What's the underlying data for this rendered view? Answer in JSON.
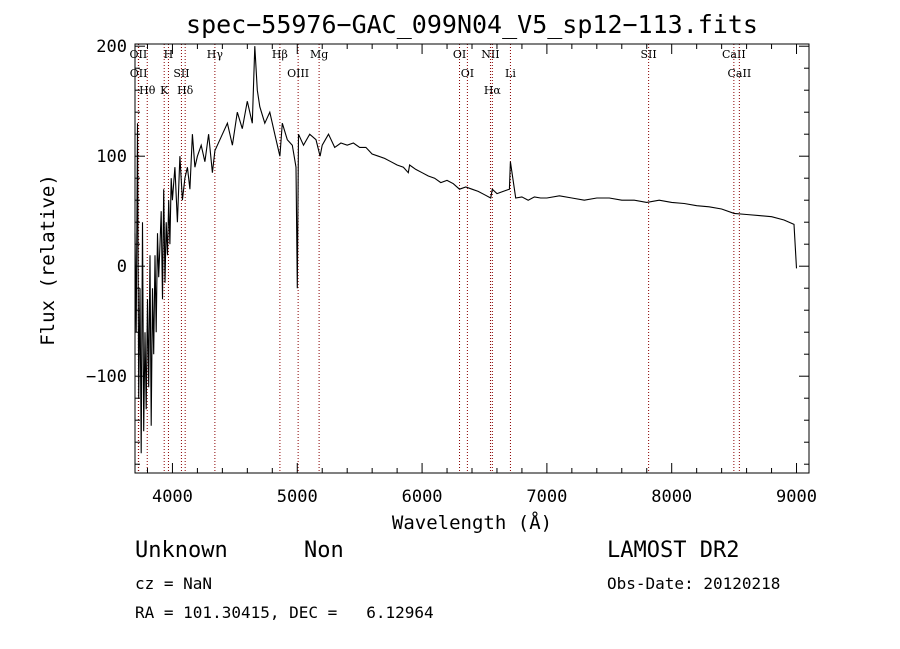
{
  "chart_data": {
    "type": "line",
    "title": "spec−55976−GAC_099N04_V5_sp12−113.fits",
    "xlabel": "Wavelength (Å)",
    "ylabel": "Flux (relative)",
    "xlim": [
      3700,
      9100
    ],
    "ylim": [
      -188,
      202
    ],
    "xticks": [
      4000,
      5000,
      6000,
      7000,
      8000,
      9000
    ],
    "yticks": [
      -100,
      0,
      100,
      200
    ],
    "yticklabels": [
      "−100",
      "0",
      "100",
      "200"
    ],
    "grid": false,
    "series": [
      {
        "x": [
          3700,
          3710,
          3720,
          3730,
          3740,
          3750,
          3760,
          3770,
          3780,
          3790,
          3800,
          3810,
          3820,
          3830,
          3840,
          3850,
          3860,
          3870,
          3880,
          3890,
          3900,
          3910,
          3920,
          3930,
          3940,
          3950,
          3960,
          3970,
          3980,
          3990,
          4000,
          4020,
          4040,
          4060,
          4080,
          4100,
          4120,
          4140,
          4160,
          4180,
          4200,
          4230,
          4260,
          4290,
          4320,
          4340,
          4360,
          4400,
          4440,
          4480,
          4520,
          4560,
          4600,
          4640,
          4660,
          4680,
          4700,
          4740,
          4780,
          4820,
          4861,
          4880,
          4920,
          4960,
          4990,
          5000,
          5010,
          5050,
          5100,
          5150,
          5183,
          5200,
          5250,
          5300,
          5350,
          5400,
          5450,
          5500,
          5550,
          5600,
          5650,
          5700,
          5750,
          5800,
          5850,
          5890,
          5900,
          5950,
          6000,
          6050,
          6100,
          6150,
          6200,
          6250,
          6300,
          6350,
          6400,
          6450,
          6500,
          6550,
          6563,
          6600,
          6650,
          6700,
          6708,
          6750,
          6800,
          6850,
          6900,
          6950,
          7000,
          7100,
          7200,
          7300,
          7400,
          7500,
          7600,
          7700,
          7800,
          7900,
          8000,
          8100,
          8200,
          8300,
          8400,
          8500,
          8600,
          8700,
          8800,
          8900,
          8980,
          9000
        ],
        "y": [
          30,
          -60,
          130,
          -120,
          -20,
          -170,
          40,
          -150,
          -60,
          -130,
          -30,
          -110,
          10,
          -145,
          -20,
          -80,
          10,
          -60,
          30,
          -10,
          20,
          50,
          -30,
          70,
          -15,
          40,
          10,
          60,
          20,
          80,
          60,
          90,
          40,
          100,
          60,
          80,
          90,
          70,
          120,
          90,
          100,
          110,
          95,
          120,
          85,
          105,
          110,
          120,
          130,
          110,
          140,
          125,
          150,
          130,
          200,
          160,
          145,
          130,
          140,
          120,
          100,
          130,
          115,
          110,
          90,
          -20,
          120,
          110,
          120,
          115,
          100,
          110,
          120,
          108,
          112,
          110,
          112,
          108,
          108,
          102,
          100,
          98,
          95,
          92,
          90,
          85,
          92,
          88,
          85,
          82,
          80,
          76,
          78,
          75,
          70,
          72,
          70,
          68,
          65,
          62,
          70,
          66,
          68,
          70,
          95,
          62,
          63,
          60,
          63,
          62,
          62,
          64,
          62,
          60,
          62,
          62,
          60,
          60,
          58,
          60,
          58,
          57,
          55,
          54,
          52,
          48,
          47,
          46,
          45,
          42,
          38,
          -2
        ]
      }
    ],
    "annotations": [
      {
        "wave": 3727,
        "label": "OII"
      },
      {
        "wave": 3729,
        "label": "OII"
      },
      {
        "wave": 3798,
        "label": "Hθ"
      },
      {
        "wave": 3934,
        "label": "K"
      },
      {
        "wave": 3968,
        "label": "H"
      },
      {
        "wave": 4072,
        "label": "SII"
      },
      {
        "wave": 4102,
        "label": "Hδ"
      },
      {
        "wave": 4340,
        "label": "Hγ"
      },
      {
        "wave": 4861,
        "label": "Hβ"
      },
      {
        "wave": 5007,
        "label": "OIII"
      },
      {
        "wave": 5175,
        "label": "Mg"
      },
      {
        "wave": 6300,
        "label": "OI"
      },
      {
        "wave": 6363,
        "label": "OI"
      },
      {
        "wave": 6548,
        "label": "NII"
      },
      {
        "wave": 6563,
        "label": "Hα"
      },
      {
        "wave": 6708,
        "label": "Li"
      },
      {
        "wave": 7815,
        "label": "SII"
      },
      {
        "wave": 8498,
        "label": "CaII"
      },
      {
        "wave": 8542,
        "label": "CaII"
      }
    ],
    "line_color": "#000000",
    "marker_color": "#8b0000"
  },
  "info": {
    "class": "Unknown",
    "subclass": "Non",
    "survey": "LAMOST DR2",
    "cz": "cz = NaN",
    "obs_date": "Obs-Date: 20120218",
    "radec": "RA = 101.30415, DEC =   6.12964"
  }
}
